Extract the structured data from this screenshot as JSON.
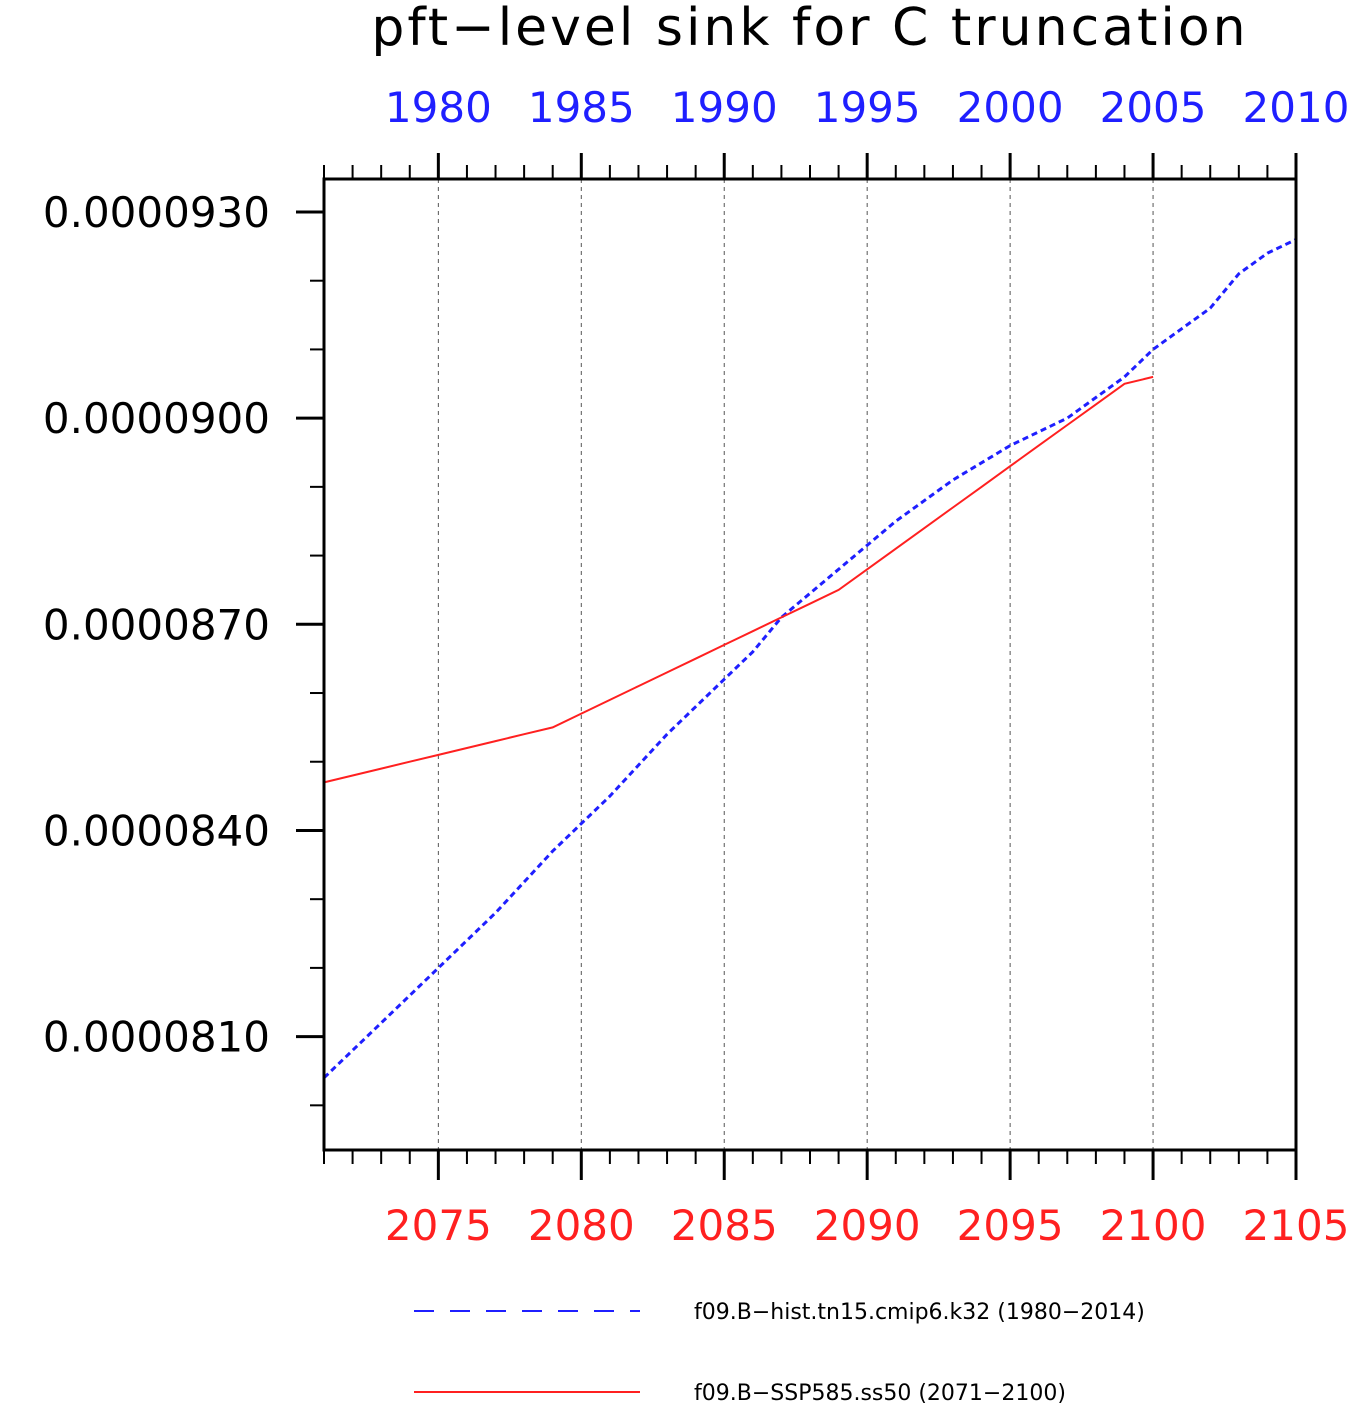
{
  "chart_data": {
    "type": "line",
    "title": "pft−level sink for C truncation",
    "top_axis": {
      "ticks": [
        "1980",
        "1985",
        "1990",
        "1995",
        "2000",
        "2005",
        "2010"
      ],
      "range": [
        1976,
        2010
      ],
      "color": "#1f1fff"
    },
    "bottom_axis": {
      "ticks": [
        "2075",
        "2080",
        "2085",
        "2090",
        "2095",
        "2100",
        "2105"
      ],
      "range": [
        2071,
        2105
      ],
      "color": "#ff2020"
    },
    "y_axis": {
      "ticks": [
        "0.0000810",
        "0.0000840",
        "0.0000870",
        "0.0000900",
        "0.0000930"
      ],
      "tick_values": [
        8.1e-05,
        8.4e-05,
        8.7e-05,
        9e-05,
        9.3e-05
      ],
      "range": [
        7.935e-05,
        9.348e-05
      ]
    },
    "grid": "vertical dashed",
    "legend_position": "bottom",
    "series": [
      {
        "name": "f09.B−hist.tn15.cmip6.k32 (1980−2014)",
        "axis": "top",
        "color": "#1f1fff",
        "style": "dashed",
        "x": [
          1976,
          1978,
          1980,
          1982,
          1984,
          1986,
          1988,
          1990,
          1991,
          1992,
          1994,
          1996,
          1998,
          2000,
          2002,
          2004,
          2005,
          2006,
          2007,
          2008,
          2009,
          2010
        ],
        "y": [
          8.04e-05,
          8.12e-05,
          8.2e-05,
          8.28e-05,
          8.37e-05,
          8.45e-05,
          8.54e-05,
          8.62e-05,
          8.66e-05,
          8.71e-05,
          8.78e-05,
          8.85e-05,
          8.91e-05,
          8.96e-05,
          9e-05,
          9.06e-05,
          9.1e-05,
          9.13e-05,
          9.16e-05,
          9.21e-05,
          9.24e-05,
          9.26e-05
        ]
      },
      {
        "name": "f09.B−SSP585.ss50 (2071−2100)",
        "axis": "bottom",
        "color": "#ff2020",
        "style": "solid",
        "x": [
          2071,
          2072,
          2073,
          2074,
          2075,
          2076,
          2077,
          2078,
          2079,
          2080,
          2081,
          2082,
          2083,
          2084,
          2085,
          2086,
          2087,
          2088,
          2089,
          2090,
          2091,
          2092,
          2093,
          2094,
          2095,
          2096,
          2097,
          2098,
          2099,
          2100
        ],
        "y": [
          8.47e-05,
          8.48e-05,
          8.49e-05,
          8.5e-05,
          8.51e-05,
          8.52e-05,
          8.53e-05,
          8.54e-05,
          8.55e-05,
          8.57e-05,
          8.59e-05,
          8.61e-05,
          8.63e-05,
          8.65e-05,
          8.67e-05,
          8.69e-05,
          8.71e-05,
          8.73e-05,
          8.75e-05,
          8.78e-05,
          8.81e-05,
          8.84e-05,
          8.87e-05,
          8.9e-05,
          8.93e-05,
          8.96e-05,
          8.99e-05,
          9.02e-05,
          9.05e-05,
          9.06e-05
        ]
      }
    ]
  }
}
